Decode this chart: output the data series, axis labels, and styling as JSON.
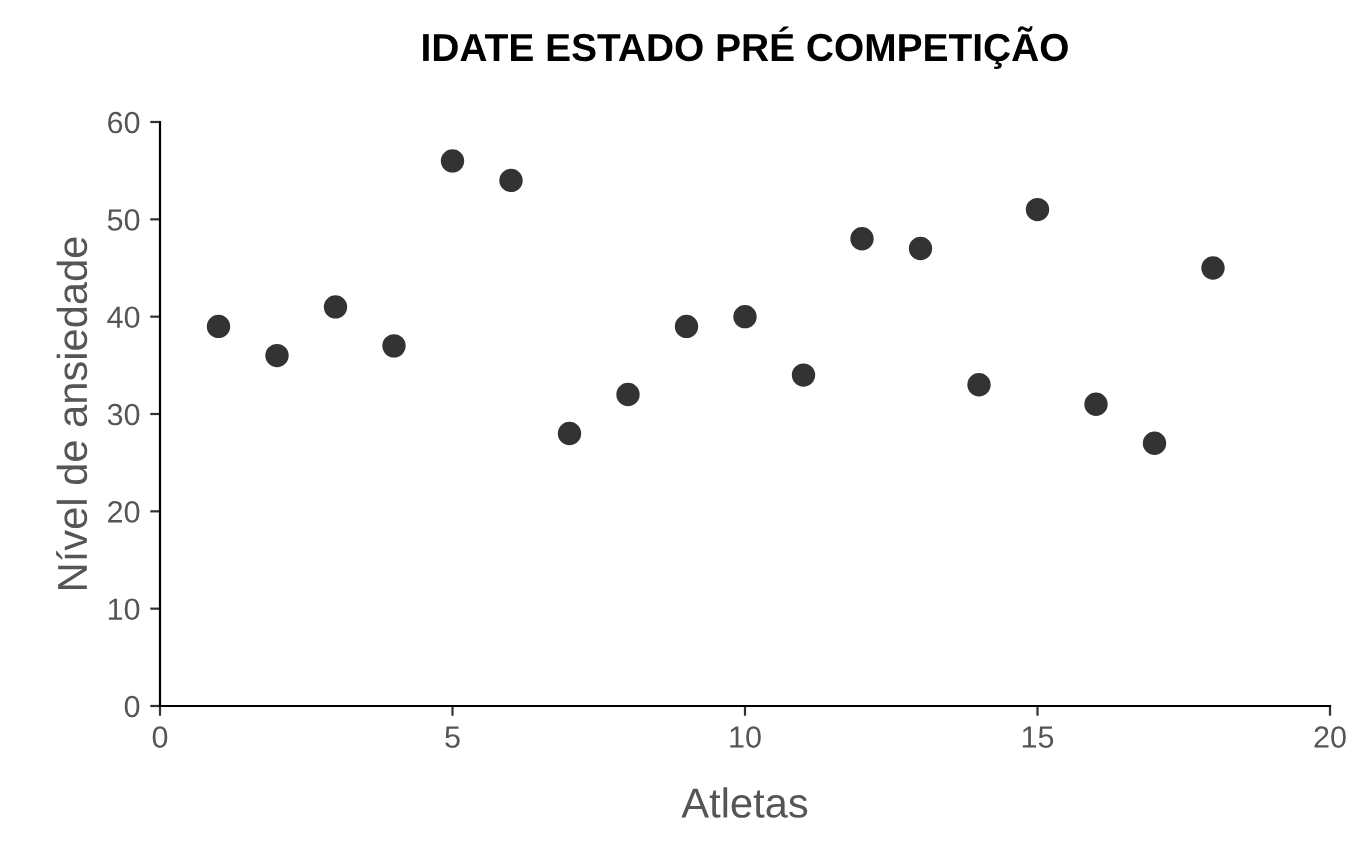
{
  "chart_data": {
    "type": "scatter",
    "title": "IDATE ESTADO PRÉ COMPETIÇÃO",
    "xlabel": "Atletas",
    "ylabel": "Nível de ansiedade",
    "x": [
      1,
      2,
      3,
      4,
      5,
      6,
      7,
      8,
      9,
      10,
      11,
      12,
      13,
      14,
      15,
      16,
      17,
      18
    ],
    "series": [
      {
        "color": "#333333",
        "values": [
          39,
          36,
          41,
          37,
          56,
          54,
          28,
          32,
          39,
          40,
          34,
          48,
          47,
          33,
          51,
          31,
          27,
          45
        ]
      }
    ],
    "xlim": [
      0,
      20
    ],
    "xticks": [
      0,
      5,
      10,
      15,
      20
    ],
    "ylim": [
      0,
      60
    ],
    "yticks": [
      0,
      10,
      20,
      30,
      40,
      50,
      60
    ],
    "marker": "circle",
    "grid": false,
    "legend": false
  }
}
